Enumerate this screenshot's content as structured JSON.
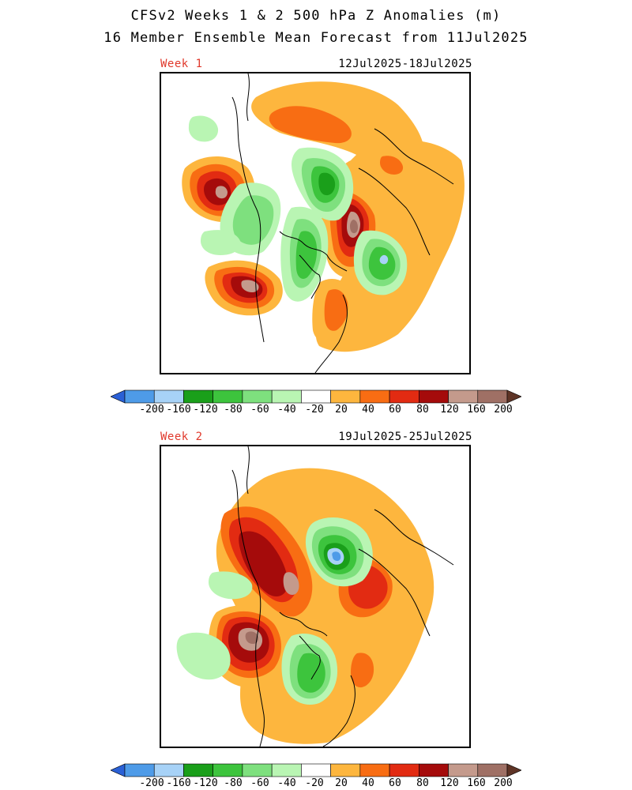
{
  "header": {
    "title": "CFSv2 Weeks 1 & 2 500 hPa Z Anomalies (m)",
    "subtitle": "16 Member Ensemble Mean Forecast from 11Jul2025"
  },
  "panels": [
    {
      "label": "Week 1",
      "dates": "12Jul2025-18Jul2025"
    },
    {
      "label": "Week 2",
      "dates": "19Jul2025-25Jul2025"
    }
  ],
  "colorbar": {
    "labels": [
      "-200",
      "-160",
      "-120",
      "-80",
      "-60",
      "-40",
      "-20",
      "20",
      "40",
      "60",
      "80",
      "120",
      "160",
      "200"
    ],
    "colors": [
      "#2a60d6",
      "#4e9be8",
      "#a7d2f7",
      "#1a9f1a",
      "#3dc43d",
      "#7ee07e",
      "#b9f5b3",
      "#ffffff",
      "#fdb63e",
      "#f86d13",
      "#e22b12",
      "#a50b0b",
      "#c49a8c",
      "#9f7065",
      "#5e3426"
    ]
  },
  "map_colors": {
    "g20": "#b9f5b3",
    "g40": "#7ee07e",
    "g60": "#3dc43d",
    "g80": "#1a9f1a",
    "b120": "#a7d2f7",
    "b160": "#4e9be8",
    "o20": "#fdb63e",
    "o40": "#f86d13",
    "o60": "#e22b12",
    "o80": "#a50b0b",
    "o120": "#c49a8c",
    "o160": "#9f7065"
  }
}
